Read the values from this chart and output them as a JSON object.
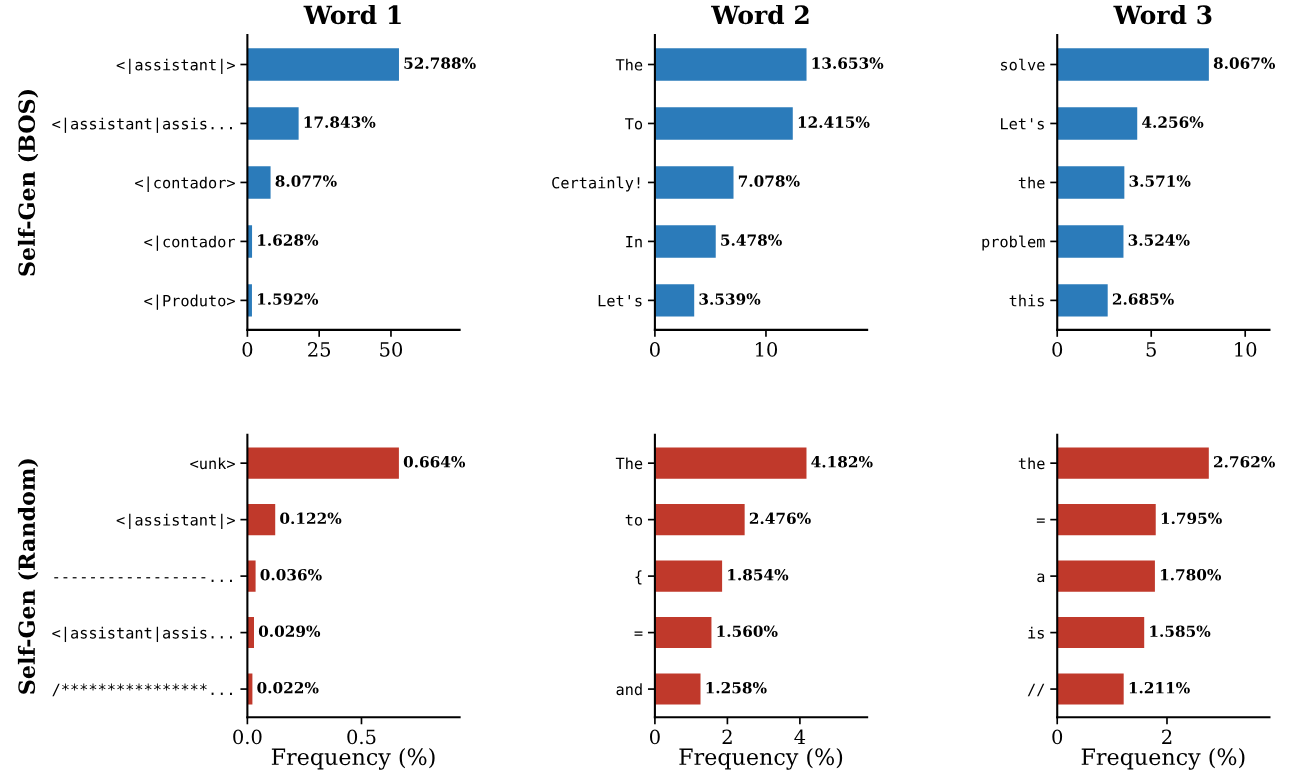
{
  "chart_data": [
    {
      "type": "bar",
      "orientation": "horizontal",
      "title": "Word 1",
      "ylabel": "Self-Gen (BOS)",
      "color": "#2b7bba",
      "categories": [
        "<|assistant|>",
        "<|assistant|assis...",
        "<|contador>",
        "<|contador",
        "<|Produto>"
      ],
      "values": [
        52.788,
        17.843,
        8.077,
        1.628,
        1.592
      ],
      "value_labels": [
        "52.788%",
        "17.843%",
        "8.077%",
        "1.628%",
        "1.592%"
      ],
      "xlim": [
        0,
        73.9
      ],
      "xticks": [
        0,
        25,
        50
      ]
    },
    {
      "type": "bar",
      "orientation": "horizontal",
      "title": "Word 2",
      "color": "#2b7bba",
      "categories": [
        "The",
        "To",
        "Certainly!",
        "In",
        "Let's"
      ],
      "values": [
        13.653,
        12.415,
        7.078,
        5.478,
        3.539
      ],
      "value_labels": [
        "13.653%",
        "12.415%",
        "7.078%",
        "5.478%",
        "3.539%"
      ],
      "xlim": [
        0,
        19.11
      ],
      "xticks": [
        0,
        10
      ]
    },
    {
      "type": "bar",
      "orientation": "horizontal",
      "title": "Word 3",
      "color": "#2b7bba",
      "categories": [
        "solve",
        "Let's",
        "the",
        "problem",
        "this"
      ],
      "values": [
        8.067,
        4.256,
        3.571,
        3.524,
        2.685
      ],
      "value_labels": [
        "8.067%",
        "4.256%",
        "3.571%",
        "3.524%",
        "2.685%"
      ],
      "xlim": [
        0,
        11.29
      ],
      "xticks": [
        0,
        5,
        10
      ]
    },
    {
      "type": "bar",
      "orientation": "horizontal",
      "ylabel": "Self-Gen (Random)",
      "xlabel": "Frequency (%)",
      "color": "#c0392b",
      "categories": [
        "<unk>",
        "<|assistant|>",
        "-----------------...",
        "<|assistant|assis...",
        "/****************..."
      ],
      "values": [
        0.664,
        0.122,
        0.036,
        0.029,
        0.022
      ],
      "value_labels": [
        "0.664%",
        "0.122%",
        "0.036%",
        "0.029%",
        "0.022%"
      ],
      "xlim": [
        0,
        0.93
      ],
      "xticks": [
        {
          "value": 0,
          "label": "0.0"
        },
        {
          "value": 0.5,
          "label": "0.5"
        }
      ]
    },
    {
      "type": "bar",
      "orientation": "horizontal",
      "xlabel": "Frequency (%)",
      "color": "#c0392b",
      "categories": [
        "The",
        "to",
        "{",
        "=",
        "and"
      ],
      "values": [
        4.182,
        2.476,
        1.854,
        1.56,
        1.258
      ],
      "value_labels": [
        "4.182%",
        "2.476%",
        "1.854%",
        "1.560%",
        "1.258%"
      ],
      "xlim": [
        0,
        5.855
      ],
      "xticks": [
        0,
        2,
        4
      ]
    },
    {
      "type": "bar",
      "orientation": "horizontal",
      "xlabel": "Frequency (%)",
      "color": "#c0392b",
      "categories": [
        "the",
        "=",
        "a",
        "is",
        "//"
      ],
      "values": [
        2.762,
        1.795,
        1.78,
        1.585,
        1.211
      ],
      "value_labels": [
        "2.762%",
        "1.795%",
        "1.780%",
        "1.585%",
        "1.211%"
      ],
      "xlim": [
        0,
        3.867
      ],
      "xticks": [
        0,
        2
      ]
    }
  ]
}
